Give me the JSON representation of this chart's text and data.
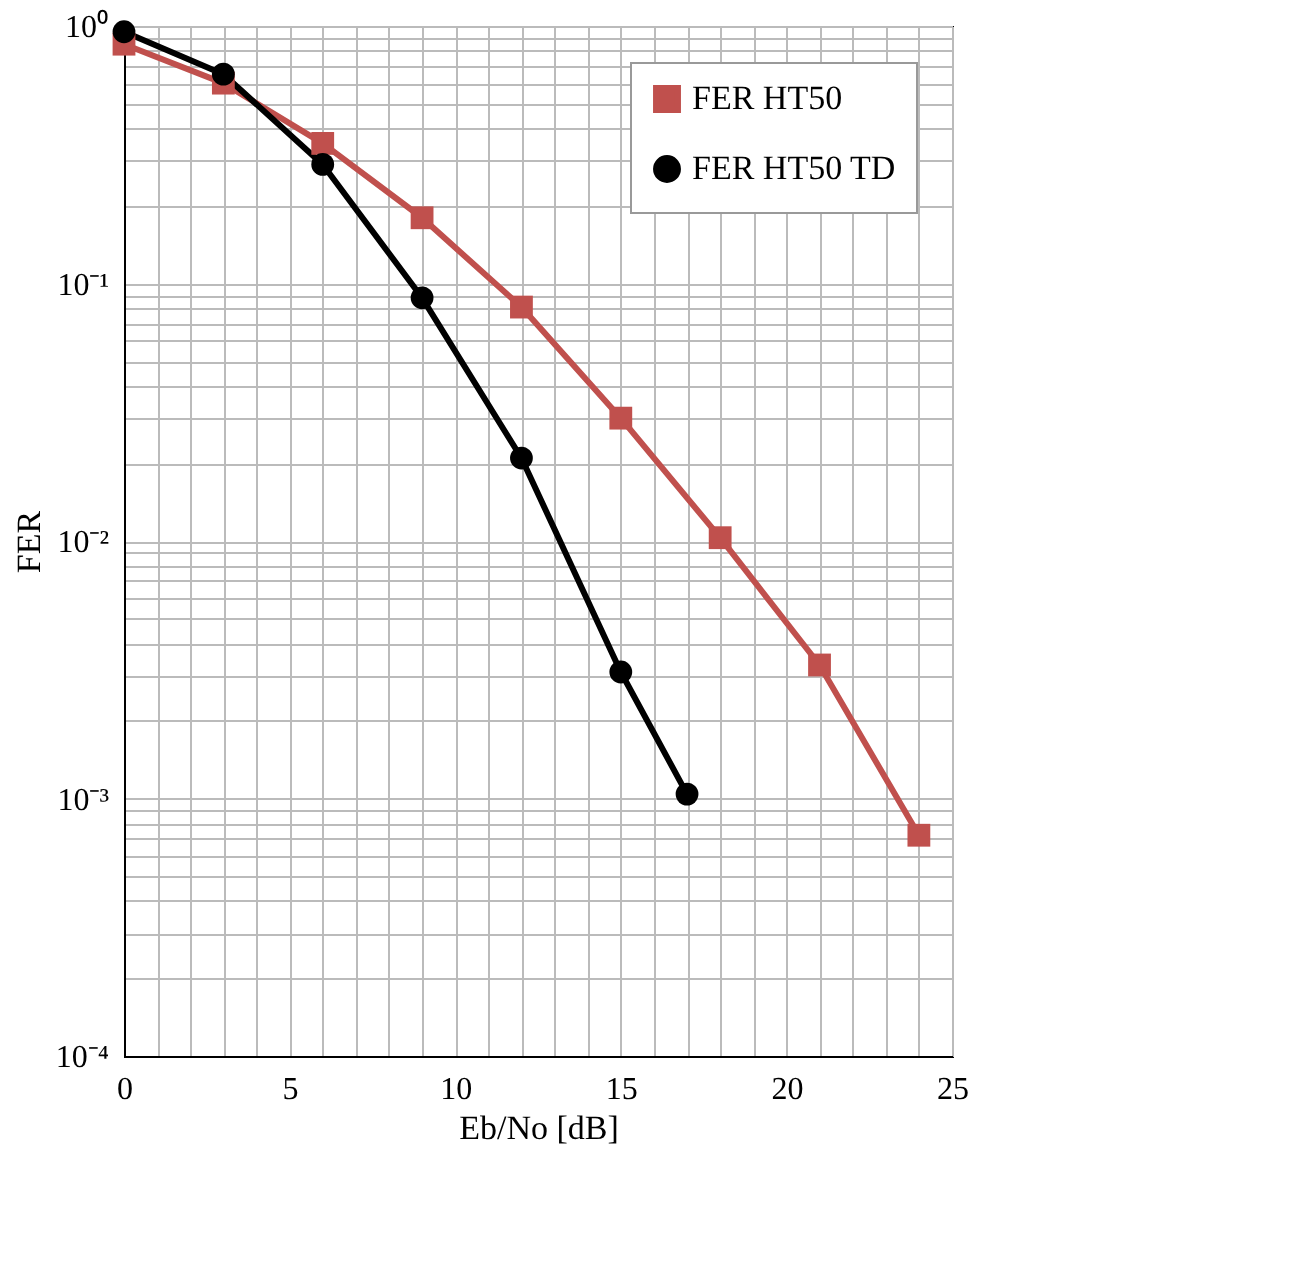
{
  "chart_data": {
    "type": "line",
    "xlabel": "Eb/No [dB]",
    "ylabel": "FER",
    "log": "y",
    "grid": true,
    "line_style": "solid",
    "legend": "top right",
    "x": [
      0,
      3,
      6,
      9,
      12,
      15,
      18,
      21,
      24
    ],
    "xlim": [
      0,
      25
    ],
    "xticks": [
      0,
      {
        "value": 1,
        "label": null
      },
      {
        "value": 2,
        "label": null
      },
      {
        "value": 3,
        "label": null
      },
      {
        "value": 4,
        "label": null
      },
      5,
      {
        "value": 6,
        "label": null
      },
      {
        "value": 7,
        "label": null
      },
      {
        "value": 8,
        "label": null
      },
      {
        "value": 9,
        "label": null
      },
      10,
      {
        "value": 11,
        "label": null
      },
      {
        "value": 12,
        "label": null
      },
      {
        "value": 13,
        "label": null
      },
      {
        "value": 14,
        "label": null
      },
      15,
      {
        "value": 16,
        "label": null
      },
      {
        "value": 17,
        "label": null
      },
      {
        "value": 18,
        "label": null
      },
      {
        "value": 19,
        "label": null
      },
      20,
      {
        "value": 21,
        "label": null
      },
      {
        "value": 22,
        "label": null
      },
      {
        "value": 23,
        "label": null
      },
      {
        "value": 24,
        "label": null
      },
      25
    ],
    "ylim": [
      0.0001,
      1
    ],
    "yticks": [
      {
        "value": 0.0001,
        "label": "10⁻⁴"
      },
      {
        "value": 0.0002,
        "label": null
      },
      {
        "value": 0.0003,
        "label": null
      },
      {
        "value": 0.0004,
        "label": null
      },
      {
        "value": 0.0005,
        "label": null
      },
      {
        "value": 0.0006,
        "label": null
      },
      {
        "value": 0.0007,
        "label": null
      },
      {
        "value": 0.0008,
        "label": null
      },
      {
        "value": 0.0009,
        "label": null
      },
      {
        "value": 0.001,
        "label": "10⁻³"
      },
      {
        "value": 0.002,
        "label": null
      },
      {
        "value": 0.003,
        "label": null
      },
      {
        "value": 0.004,
        "label": null
      },
      {
        "value": 0.005,
        "label": null
      },
      {
        "value": 0.006,
        "label": null
      },
      {
        "value": 0.007,
        "label": null
      },
      {
        "value": 0.008,
        "label": null
      },
      {
        "value": 0.009,
        "label": null
      },
      {
        "value": 0.01,
        "label": "10⁻²"
      },
      {
        "value": 0.02,
        "label": null
      },
      {
        "value": 0.03,
        "label": null
      },
      {
        "value": 0.04,
        "label": null
      },
      {
        "value": 0.05,
        "label": null
      },
      {
        "value": 0.06,
        "label": null
      },
      {
        "value": 0.07,
        "label": null
      },
      {
        "value": 0.08,
        "label": null
      },
      {
        "value": 0.09,
        "label": null
      },
      {
        "value": 0.1,
        "label": "10⁻¹"
      },
      {
        "value": 0.2,
        "label": null
      },
      {
        "value": 0.3,
        "label": null
      },
      {
        "value": 0.4,
        "label": null
      },
      {
        "value": 0.5,
        "label": null
      },
      {
        "value": 0.6,
        "label": null
      },
      {
        "value": 0.7,
        "label": null
      },
      {
        "value": 0.8,
        "label": null
      },
      {
        "value": 0.9,
        "label": null
      },
      {
        "value": 1,
        "label": "10⁰"
      }
    ],
    "series": [
      {
        "name": "FER HT50",
        "color": "#c0504d",
        "marker": "square",
        "values": [
          0.85,
          0.6,
          0.35,
          0.18,
          0.081,
          0.03,
          0.0103,
          0.0033,
          0.00072
        ]
      },
      {
        "name": "FER HT50 TD",
        "color": "#000000",
        "marker": "circle",
        "x": [
          0,
          3,
          6,
          9,
          12,
          15,
          17
        ],
        "values": [
          0.95,
          0.65,
          0.29,
          0.088,
          0.021,
          0.0031,
          0.00104
        ]
      }
    ]
  }
}
